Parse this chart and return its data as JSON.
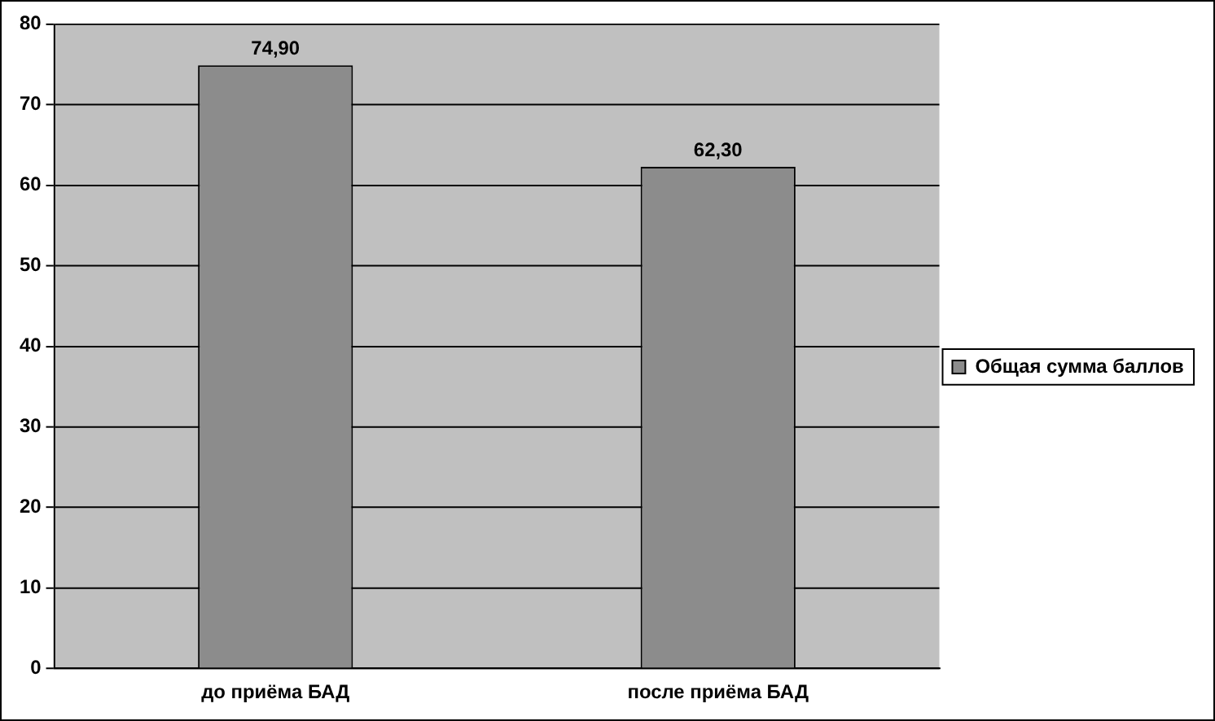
{
  "chart_data": {
    "type": "bar",
    "categories": [
      "до приёма БАД",
      "после приёма БАД"
    ],
    "series": [
      {
        "name": "Общая сумма баллов",
        "color": "#8c8c8c",
        "values": [
          74.9,
          62.3
        ],
        "value_labels": [
          "74,90",
          "62,30"
        ]
      }
    ],
    "ylim": [
      0,
      80
    ],
    "yticks": [
      0,
      10,
      20,
      30,
      40,
      50,
      60,
      70,
      80
    ],
    "grid": "y",
    "legend": "right"
  }
}
